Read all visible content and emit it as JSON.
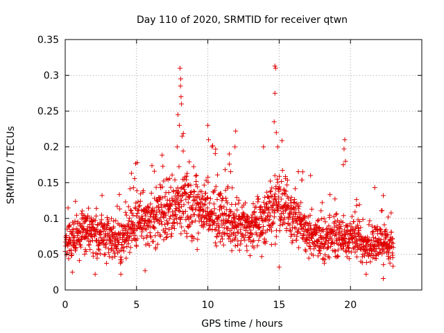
{
  "chart_data": {
    "type": "scatter",
    "title": "Day 110 of 2020, SRMTID for receiver qtwn",
    "xlabel": "GPS time / hours",
    "ylabel": "SRMTID / TECUs",
    "xlim": [
      0,
      25
    ],
    "ylim": [
      0,
      0.35
    ],
    "xticks": [
      0,
      5,
      10,
      15,
      20
    ],
    "xtick_labels": [
      "0",
      "5",
      "10",
      "15",
      "20"
    ],
    "yticks": [
      0,
      0.05,
      0.1,
      0.15,
      0.2,
      0.25,
      0.3,
      0.35
    ],
    "ytick_labels": [
      "0",
      "0.05",
      "0.1",
      "0.15",
      "0.2",
      "0.25",
      "0.3",
      "0.35"
    ],
    "grid": true,
    "marker": "plus",
    "color": "#e00000",
    "data_range_hours": [
      0,
      23
    ],
    "series": [
      {
        "name": "SRMTID",
        "profile_hours": [
          0,
          1,
          2,
          3,
          4,
          5,
          6,
          7,
          8,
          9,
          10,
          11,
          12,
          13,
          14,
          15,
          16,
          17,
          18,
          19,
          20,
          21,
          22,
          23
        ],
        "profile_median": [
          0.065,
          0.075,
          0.08,
          0.075,
          0.07,
          0.095,
          0.1,
          0.105,
          0.115,
          0.12,
          0.11,
          0.1,
          0.095,
          0.085,
          0.095,
          0.125,
          0.1,
          0.08,
          0.07,
          0.075,
          0.075,
          0.06,
          0.065,
          0.06
        ],
        "spikes": [
          {
            "x": 8.05,
            "y": 0.31
          },
          {
            "x": 8.1,
            "y": 0.295
          },
          {
            "x": 8.08,
            "y": 0.285
          },
          {
            "x": 8.12,
            "y": 0.27
          },
          {
            "x": 8.15,
            "y": 0.26
          },
          {
            "x": 7.9,
            "y": 0.245
          },
          {
            "x": 8.0,
            "y": 0.23
          },
          {
            "x": 8.2,
            "y": 0.215
          },
          {
            "x": 7.85,
            "y": 0.2
          },
          {
            "x": 10.0,
            "y": 0.23
          },
          {
            "x": 10.05,
            "y": 0.21
          },
          {
            "x": 10.3,
            "y": 0.2
          },
          {
            "x": 11.95,
            "y": 0.222
          },
          {
            "x": 11.9,
            "y": 0.2
          },
          {
            "x": 11.5,
            "y": 0.19
          },
          {
            "x": 14.7,
            "y": 0.313
          },
          {
            "x": 14.75,
            "y": 0.31
          },
          {
            "x": 14.7,
            "y": 0.275
          },
          {
            "x": 14.65,
            "y": 0.235
          },
          {
            "x": 14.8,
            "y": 0.22
          },
          {
            "x": 14.9,
            "y": 0.2
          },
          {
            "x": 13.9,
            "y": 0.2
          },
          {
            "x": 19.6,
            "y": 0.21
          },
          {
            "x": 19.55,
            "y": 0.197
          },
          {
            "x": 19.65,
            "y": 0.18
          },
          {
            "x": 19.5,
            "y": 0.175
          },
          {
            "x": 5.05,
            "y": 0.178
          },
          {
            "x": 21.7,
            "y": 0.143
          },
          {
            "x": 22.3,
            "y": 0.132
          },
          {
            "x": 17.2,
            "y": 0.16
          },
          {
            "x": 0.5,
            "y": 0.025
          },
          {
            "x": 2.1,
            "y": 0.022
          },
          {
            "x": 22.3,
            "y": 0.016
          },
          {
            "x": 21.1,
            "y": 0.022
          },
          {
            "x": 15.0,
            "y": 0.032
          },
          {
            "x": 5.6,
            "y": 0.027
          },
          {
            "x": 3.9,
            "y": 0.022
          }
        ]
      }
    ]
  }
}
